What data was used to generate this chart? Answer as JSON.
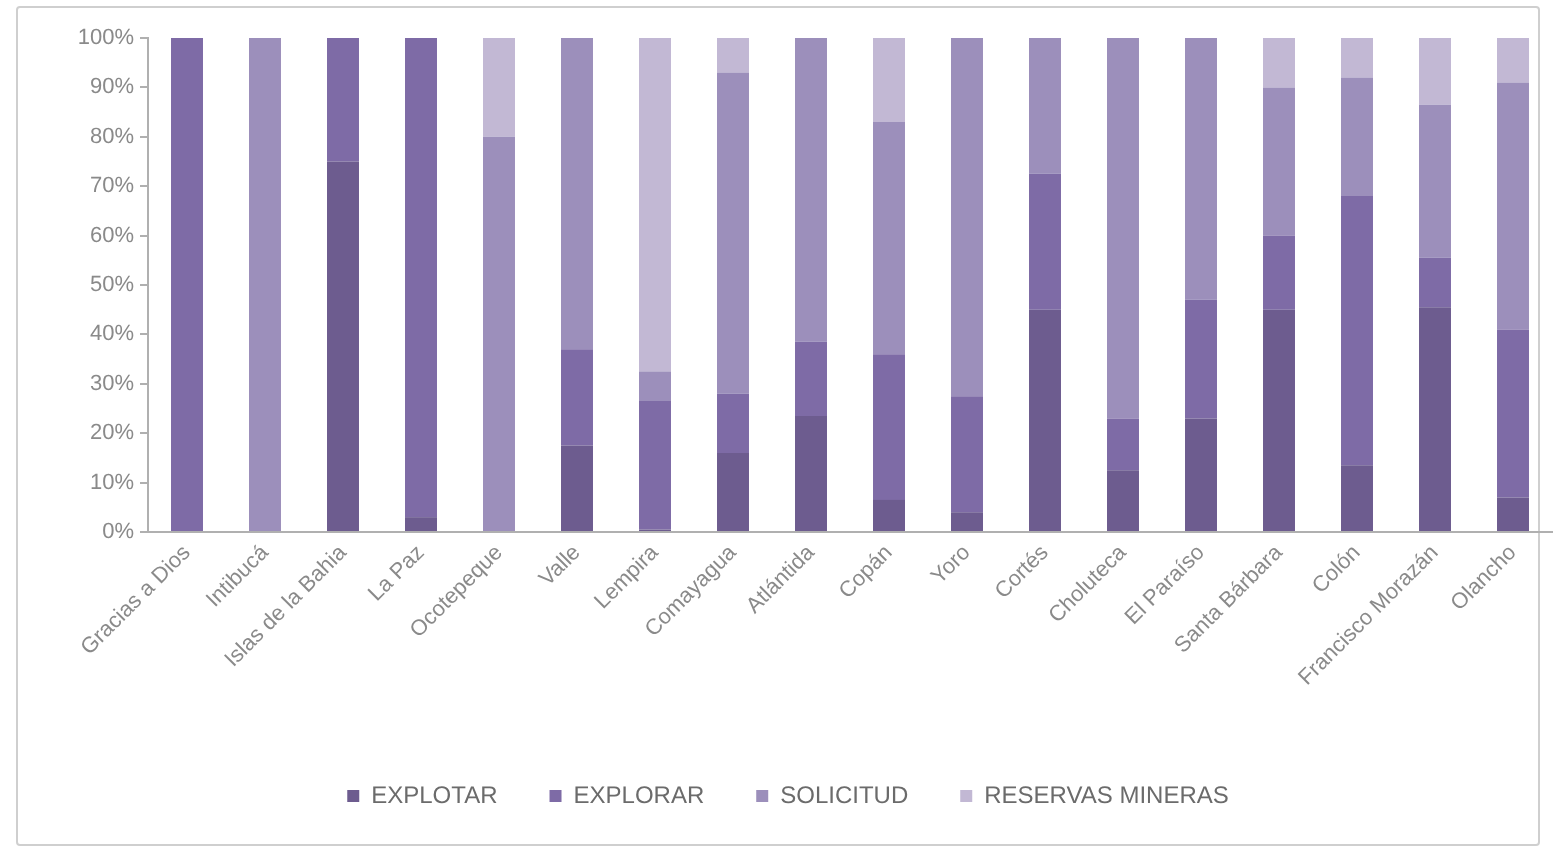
{
  "chart_data": {
    "type": "bar",
    "stacked": true,
    "categories": [
      "Gracias a Dios",
      "Intibucá",
      "Islas de la Bahia",
      "La Paz",
      "Ocotepeque",
      "Valle",
      "Lempira",
      "Comayagua",
      "Atlántida",
      "Copán",
      "Yoro",
      "Cortés",
      "Choluteca",
      "El Paraíso",
      "Santa Bárbara",
      "Colón",
      "Francisco Morazán",
      "Olancho"
    ],
    "series": [
      {
        "name": "EXPLOTAR",
        "color": "#6d5c8f",
        "values": [
          0,
          0,
          75,
          3,
          0,
          17.5,
          0.5,
          16,
          23.5,
          6.5,
          4,
          45,
          12.5,
          23,
          45,
          13.5,
          45.5,
          7
        ]
      },
      {
        "name": "EXPLORAR",
        "color": "#7e6ba6",
        "values": [
          100,
          0,
          25,
          97,
          0,
          19.5,
          26,
          12,
          15,
          29.5,
          23.5,
          27.5,
          10.5,
          24,
          15,
          54.5,
          10,
          34
        ]
      },
      {
        "name": "SOLICITUD",
        "color": "#9c8fbb",
        "values": [
          0,
          100,
          0,
          0,
          80,
          63,
          6,
          65,
          61.5,
          47,
          72.5,
          27.5,
          77,
          53,
          30,
          24,
          31,
          50
        ]
      },
      {
        "name": "RESERVAS MINERAS",
        "color": "#c2b8d4",
        "values": [
          0,
          0,
          0,
          0,
          20,
          0,
          67.5,
          7,
          0,
          17,
          0,
          0,
          0,
          0,
          10,
          8,
          13.5,
          9
        ]
      }
    ],
    "ylim": [
      0,
      100
    ],
    "yticks": [
      {
        "value": 0,
        "label": "0%"
      },
      {
        "value": 10,
        "label": "10%"
      },
      {
        "value": 20,
        "label": "20%"
      },
      {
        "value": 30,
        "label": "30%"
      },
      {
        "value": 40,
        "label": "40%"
      },
      {
        "value": 50,
        "label": "50%"
      },
      {
        "value": 60,
        "label": "60%"
      },
      {
        "value": 70,
        "label": "70%"
      },
      {
        "value": 80,
        "label": "80%"
      },
      {
        "value": 90,
        "label": "90%"
      },
      {
        "value": 100,
        "label": "100%"
      }
    ],
    "grid": false,
    "legend": "bottom"
  }
}
